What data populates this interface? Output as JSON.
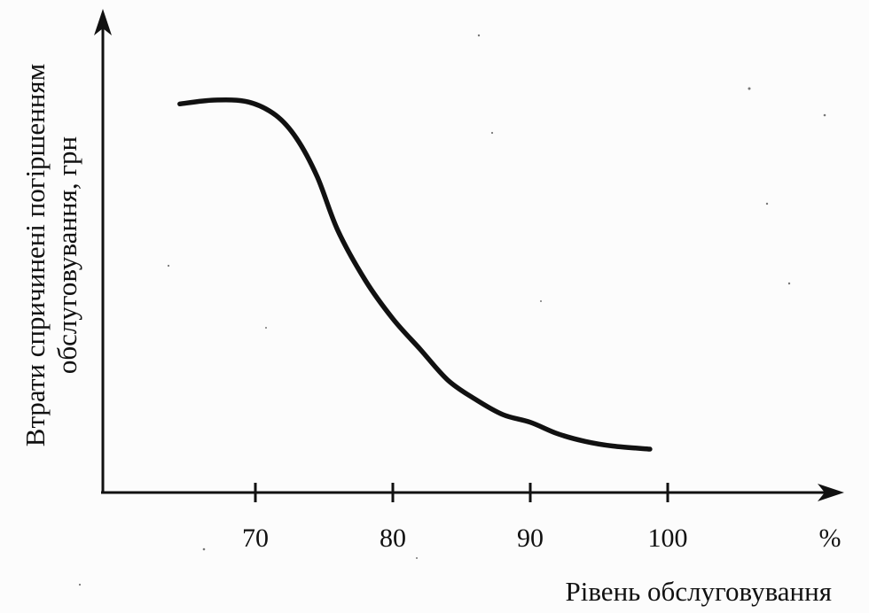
{
  "chart_data": {
    "type": "line",
    "title": "",
    "xlabel": "Рівень обслуговування",
    "x_unit": "%",
    "ylabel": [
      "Втрати спричинені погіршенням",
      "обслуговування, грн"
    ],
    "xticks": [
      "70",
      "80",
      "90",
      "100"
    ],
    "xlim": [
      59,
      112
    ],
    "ylim": [
      0,
      1
    ],
    "grid": false,
    "legend": "none",
    "series": [
      {
        "x": [
          64.5,
          67,
          69.5,
          71.5,
          73,
          74.5,
          76,
          78,
          80,
          82,
          84,
          86,
          88,
          90,
          92,
          94,
          96,
          98.7
        ],
        "y": [
          0.98,
          0.99,
          0.985,
          0.95,
          0.89,
          0.79,
          0.65,
          0.52,
          0.42,
          0.34,
          0.26,
          0.21,
          0.17,
          0.15,
          0.12,
          0.1,
          0.088,
          0.08
        ]
      }
    ]
  }
}
